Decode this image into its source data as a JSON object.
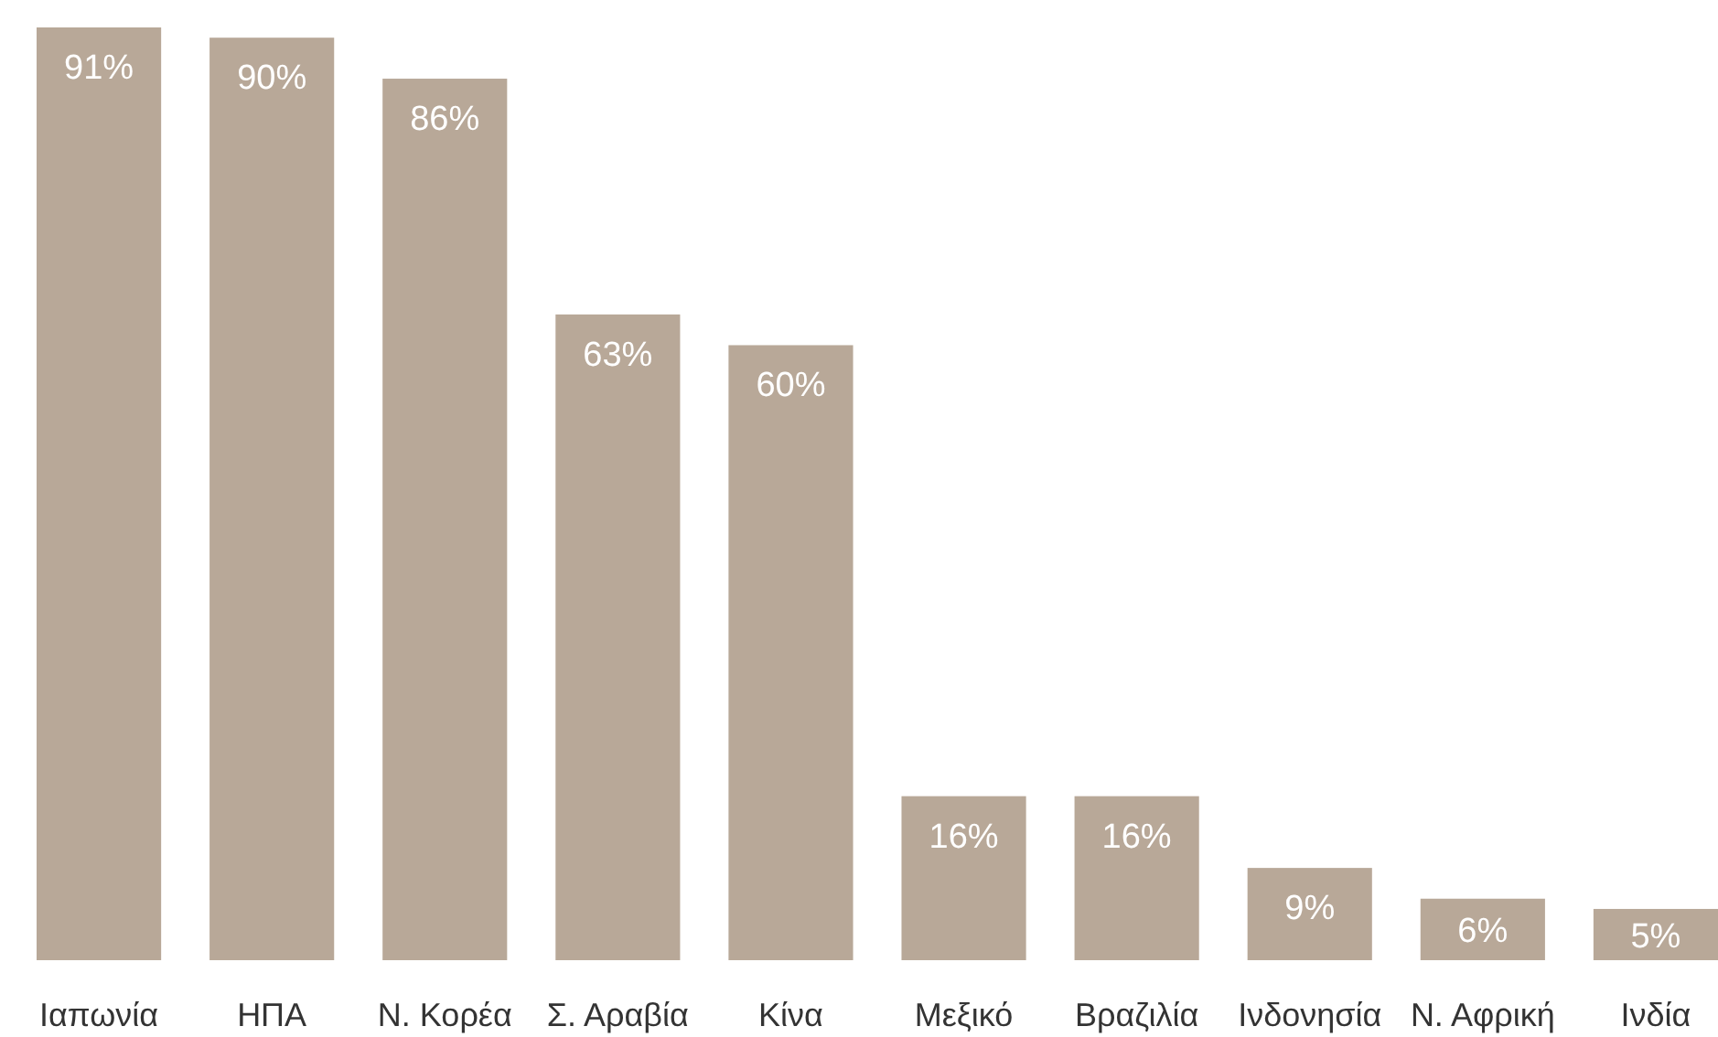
{
  "chart_data": {
    "type": "bar",
    "categories": [
      "Ιαπωνία",
      "ΗΠΑ",
      "Ν. Κορέα",
      "Σ. Αραβία",
      "Κίνα",
      "Μεξικό",
      "Βραζιλία",
      "Ινδονησία",
      "Ν. Αφρική",
      "Ινδία"
    ],
    "values": [
      91,
      90,
      86,
      63,
      60,
      16,
      16,
      9,
      6,
      5
    ],
    "value_labels": [
      "91%",
      "90%",
      "86%",
      "63%",
      "60%",
      "16%",
      "16%",
      "9%",
      "6%",
      "5%"
    ],
    "color": "#b8a898"
  }
}
